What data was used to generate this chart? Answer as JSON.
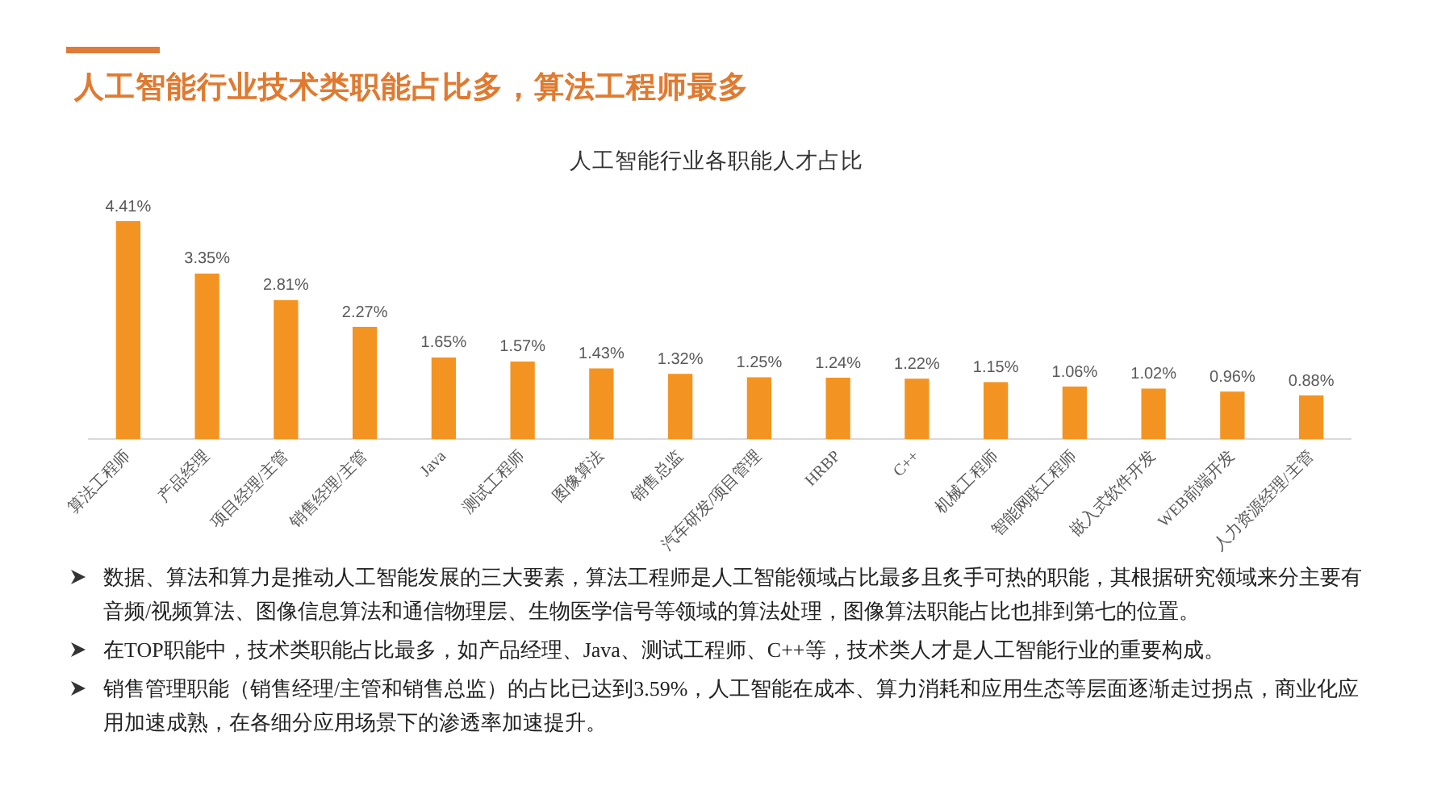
{
  "chart_data": {
    "type": "bar",
    "title": "人工智能行业技术类职能占比多，算法工程师最多",
    "subtitle": "人工智能行业各职能人才占比",
    "categories": [
      "算法工程师",
      "产品经理",
      "项目经理/主管",
      "销售经理/主管",
      "Java",
      "测试工程师",
      "图像算法",
      "销售总监",
      "汽车研发/项目管理",
      "HRBP",
      "C++",
      "机械工程师",
      "智能网联工程师",
      "嵌入式软件开发",
      "WEB前端开发",
      "人力资源经理/主管"
    ],
    "values": [
      4.41,
      3.35,
      2.81,
      2.27,
      1.65,
      1.57,
      1.43,
      1.32,
      1.25,
      1.24,
      1.22,
      1.15,
      1.06,
      1.02,
      0.96,
      0.88
    ],
    "value_labels": [
      "4.41%",
      "3.35%",
      "2.81%",
      "2.27%",
      "1.65%",
      "1.57%",
      "1.43%",
      "1.32%",
      "1.25%",
      "1.24%",
      "1.22%",
      "1.15%",
      "1.06%",
      "1.02%",
      "0.96%",
      "0.88%"
    ],
    "color": "#f39422",
    "annotations": [
      "数据、算法和算力是推动人工智能发展的三大要素，算法工程师是人工智能领域占比最多且炙手可热的职能，其根据研究领域来分主要有音频/视频算法、图像信息算法和通信物理层、生物医学信号等领域的算法处理，图像算法职能占比也排到第七的位置。",
      "在TOP职能中，技术类职能占比最多，如产品经理、Java、测试工程师、C++等，技术类人才是人工智能行业的重要构成。",
      "销售管理职能（销售经理/主管和销售总监）的占比已达到3.59%，人工智能在成本、算力消耗和应用生态等层面逐渐走过拐点，商业化应用加速成熟，在各细分应用场景下的渗透率加速提升。"
    ]
  }
}
